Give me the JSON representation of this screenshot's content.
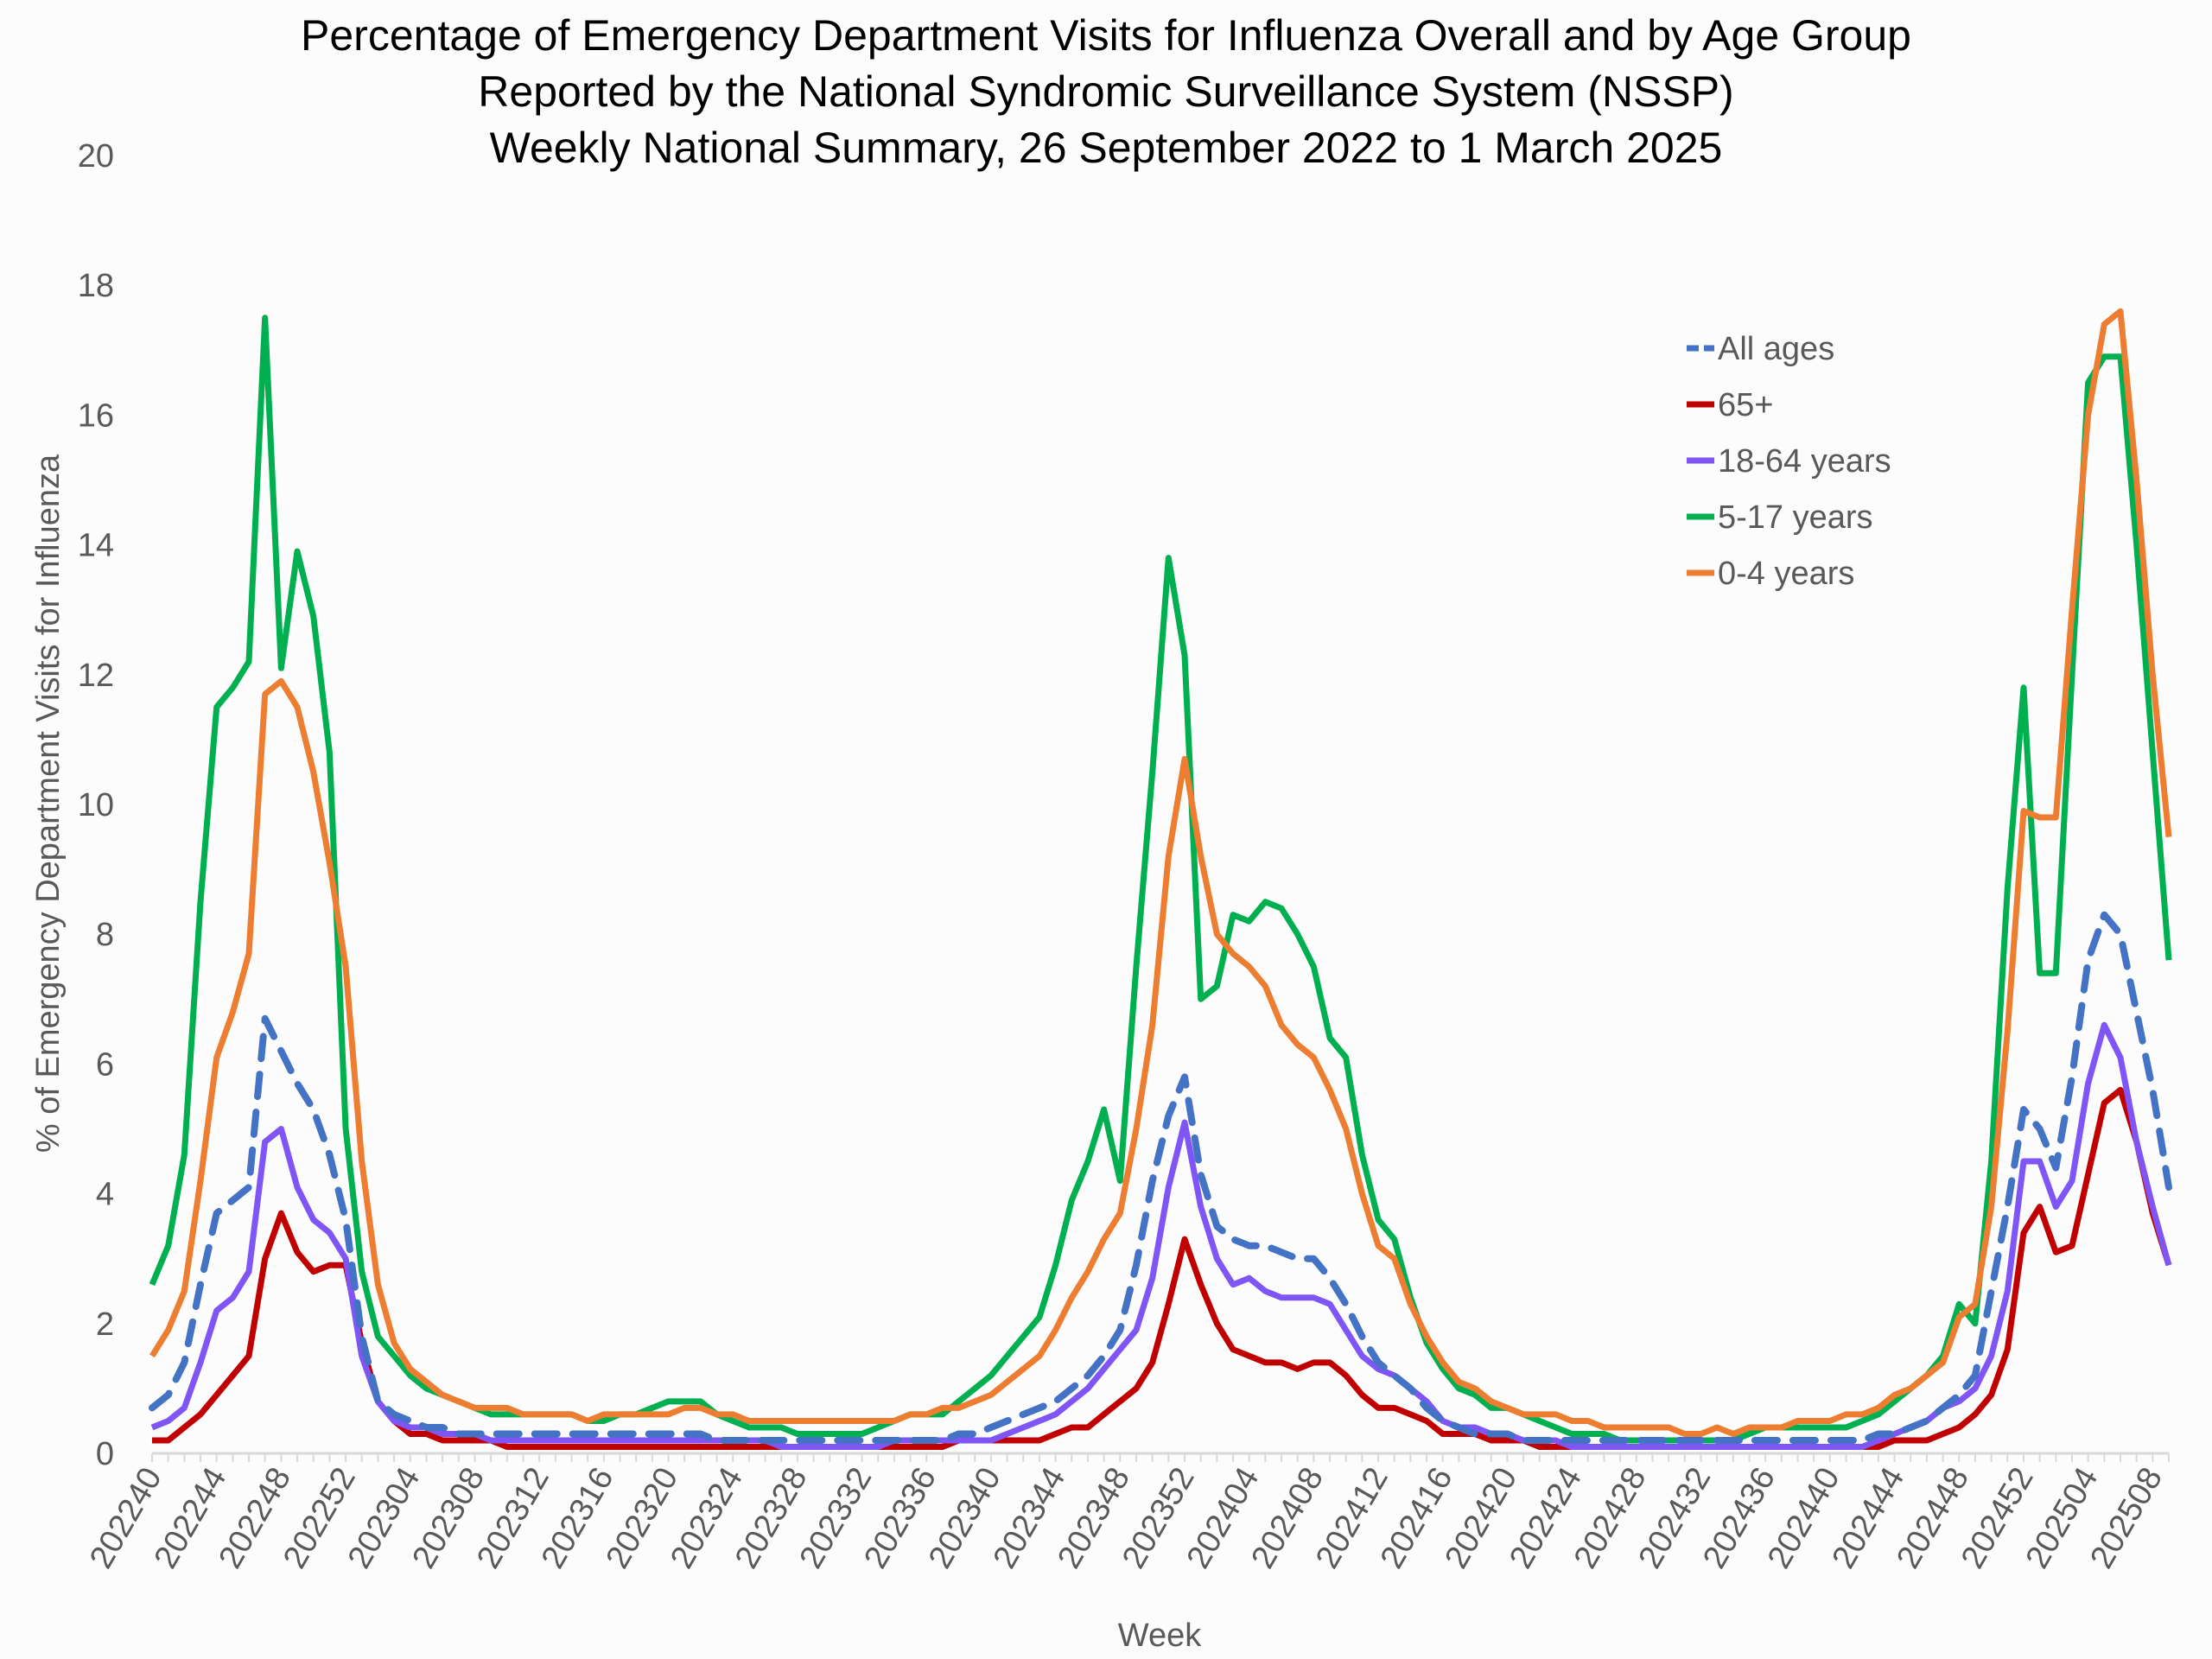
{
  "chart_data": {
    "type": "line",
    "title": [
      "Percentage of Emergency Department Visits for Influenza Overall and by Age Group",
      "Reported by the National Syndromic Surveillance System (NSSP)",
      "Weekly National Summary, 26 September 2022 to 1 March 2025"
    ],
    "xlabel": "Week",
    "ylabel": "% of Emergency Department Visits for Influenza",
    "ylim": [
      0,
      20
    ],
    "yticks": [
      "0",
      "2",
      "4",
      "6",
      "8",
      "10",
      "12",
      "14",
      "16",
      "18",
      "20"
    ],
    "xtick_labels": [
      "202240",
      "202244",
      "202248",
      "202252",
      "202304",
      "202308",
      "202312",
      "202316",
      "202320",
      "202324",
      "202328",
      "202332",
      "202336",
      "202340",
      "202344",
      "202348",
      "202352",
      "202404",
      "202408",
      "202412",
      "202416",
      "202420",
      "202424",
      "202428",
      "202432",
      "202436",
      "202440",
      "202444",
      "202448",
      "202452",
      "202504",
      "202508"
    ],
    "x_start": "202240",
    "x_end": "202509",
    "grid": false,
    "legend_position": "top-right",
    "series": [
      {
        "name": "All ages",
        "color": "#4472C4",
        "dash": true,
        "values": [
          0.7,
          0.9,
          1.4,
          2.6,
          3.7,
          3.9,
          4.1,
          6.7,
          6.2,
          5.7,
          5.3,
          4.6,
          3.6,
          1.8,
          0.8,
          0.6,
          0.5,
          0.4,
          0.4,
          0.3,
          0.3,
          0.3,
          0.3,
          0.3,
          0.3,
          0.3,
          0.3,
          0.3,
          0.3,
          0.3,
          0.3,
          0.3,
          0.3,
          0.3,
          0.3,
          0.2,
          0.2,
          0.2,
          0.2,
          0.2,
          0.2,
          0.2,
          0.2,
          0.2,
          0.2,
          0.2,
          0.2,
          0.2,
          0.2,
          0.2,
          0.3,
          0.3,
          0.4,
          0.5,
          0.6,
          0.7,
          0.8,
          1.0,
          1.2,
          1.5,
          1.9,
          2.9,
          4.2,
          5.2,
          5.8,
          4.3,
          3.5,
          3.3,
          3.2,
          3.2,
          3.1,
          3.0,
          3.0,
          2.7,
          2.3,
          1.8,
          1.4,
          1.2,
          1.0,
          0.7,
          0.5,
          0.4,
          0.3,
          0.3,
          0.3,
          0.2,
          0.2,
          0.2,
          0.2,
          0.2,
          0.2,
          0.2,
          0.2,
          0.2,
          0.2,
          0.2,
          0.2,
          0.2,
          0.2,
          0.2,
          0.2,
          0.2,
          0.2,
          0.2,
          0.2,
          0.2,
          0.2,
          0.3,
          0.3,
          0.4,
          0.5,
          0.7,
          0.9,
          1.2,
          2.5,
          3.8,
          5.3,
          5.0,
          4.4,
          5.8,
          7.6,
          8.3,
          8.0,
          6.8,
          5.6,
          4.1
        ]
      },
      {
        "name": "65+",
        "color": "#C00000",
        "dash": false,
        "values": [
          0.2,
          0.2,
          0.4,
          0.6,
          0.9,
          1.2,
          1.5,
          3.0,
          3.7,
          3.1,
          2.8,
          2.9,
          2.9,
          1.7,
          0.8,
          0.5,
          0.3,
          0.3,
          0.2,
          0.2,
          0.2,
          0.2,
          0.1,
          0.1,
          0.1,
          0.1,
          0.1,
          0.1,
          0.1,
          0.1,
          0.1,
          0.1,
          0.1,
          0.1,
          0.1,
          0.1,
          0.1,
          0.1,
          0.1,
          0.1,
          0.1,
          0.1,
          0.1,
          0.1,
          0.1,
          0.1,
          0.1,
          0.1,
          0.1,
          0.1,
          0.2,
          0.2,
          0.2,
          0.2,
          0.2,
          0.2,
          0.3,
          0.4,
          0.4,
          0.6,
          0.8,
          1.0,
          1.4,
          2.3,
          3.3,
          2.6,
          2.0,
          1.6,
          1.5,
          1.4,
          1.4,
          1.3,
          1.4,
          1.4,
          1.2,
          0.9,
          0.7,
          0.7,
          0.6,
          0.5,
          0.3,
          0.3,
          0.3,
          0.2,
          0.2,
          0.2,
          0.1,
          0.1,
          0.1,
          0.1,
          0.1,
          0.1,
          0.1,
          0.1,
          0.1,
          0.1,
          0.1,
          0.1,
          0.1,
          0.1,
          0.1,
          0.1,
          0.1,
          0.1,
          0.1,
          0.1,
          0.1,
          0.1,
          0.2,
          0.2,
          0.2,
          0.3,
          0.4,
          0.6,
          0.9,
          1.6,
          3.4,
          3.8,
          3.1,
          3.2,
          4.3,
          5.4,
          5.6,
          4.8,
          3.7,
          2.9
        ]
      },
      {
        "name": "18-64 years",
        "color": "#7F56F5",
        "dash": false,
        "values": [
          0.4,
          0.5,
          0.7,
          1.4,
          2.2,
          2.4,
          2.8,
          4.8,
          5.0,
          4.1,
          3.6,
          3.4,
          3.0,
          1.5,
          0.8,
          0.5,
          0.4,
          0.4,
          0.3,
          0.3,
          0.3,
          0.2,
          0.2,
          0.2,
          0.2,
          0.2,
          0.2,
          0.2,
          0.2,
          0.2,
          0.2,
          0.2,
          0.2,
          0.2,
          0.2,
          0.2,
          0.2,
          0.2,
          0.2,
          0.1,
          0.1,
          0.1,
          0.1,
          0.1,
          0.1,
          0.1,
          0.2,
          0.2,
          0.2,
          0.2,
          0.2,
          0.2,
          0.2,
          0.3,
          0.4,
          0.5,
          0.6,
          0.8,
          1.0,
          1.3,
          1.6,
          1.9,
          2.7,
          4.1,
          5.1,
          3.8,
          3.0,
          2.6,
          2.7,
          2.5,
          2.4,
          2.4,
          2.4,
          2.3,
          1.9,
          1.5,
          1.3,
          1.2,
          1.0,
          0.8,
          0.5,
          0.4,
          0.4,
          0.3,
          0.3,
          0.2,
          0.2,
          0.2,
          0.1,
          0.1,
          0.1,
          0.1,
          0.1,
          0.1,
          0.1,
          0.1,
          0.1,
          0.1,
          0.1,
          0.1,
          0.1,
          0.1,
          0.1,
          0.1,
          0.1,
          0.1,
          0.1,
          0.2,
          0.3,
          0.4,
          0.5,
          0.7,
          0.8,
          1.0,
          1.5,
          2.5,
          4.5,
          4.5,
          3.8,
          4.2,
          5.7,
          6.6,
          6.1,
          4.8,
          3.8,
          2.9
        ]
      },
      {
        "name": "5-17 years",
        "color": "#00B050",
        "dash": false,
        "values": [
          2.6,
          3.2,
          4.6,
          8.5,
          11.5,
          11.8,
          12.2,
          17.5,
          12.1,
          13.9,
          12.9,
          10.8,
          5.0,
          2.8,
          1.8,
          1.5,
          1.2,
          1.0,
          0.9,
          0.8,
          0.7,
          0.6,
          0.6,
          0.6,
          0.6,
          0.6,
          0.6,
          0.5,
          0.5,
          0.6,
          0.6,
          0.7,
          0.8,
          0.8,
          0.8,
          0.6,
          0.5,
          0.4,
          0.4,
          0.4,
          0.3,
          0.3,
          0.3,
          0.3,
          0.3,
          0.4,
          0.5,
          0.6,
          0.6,
          0.6,
          0.8,
          1.0,
          1.2,
          1.5,
          1.8,
          2.1,
          2.9,
          3.9,
          4.5,
          5.3,
          4.2,
          7.5,
          10.5,
          13.8,
          12.3,
          7.0,
          7.2,
          8.3,
          8.2,
          8.5,
          8.4,
          8.0,
          7.5,
          6.4,
          6.1,
          4.6,
          3.6,
          3.3,
          2.4,
          1.7,
          1.3,
          1.0,
          0.9,
          0.7,
          0.7,
          0.6,
          0.5,
          0.4,
          0.3,
          0.3,
          0.3,
          0.2,
          0.2,
          0.2,
          0.2,
          0.2,
          0.2,
          0.2,
          0.2,
          0.3,
          0.4,
          0.4,
          0.4,
          0.4,
          0.4,
          0.4,
          0.5,
          0.6,
          0.8,
          1.0,
          1.2,
          1.5,
          2.3,
          2.0,
          4.5,
          8.7,
          11.8,
          7.4,
          7.4,
          12.0,
          16.5,
          16.9,
          16.9,
          14.0,
          10.8,
          7.6
        ]
      },
      {
        "name": "0-4 years",
        "color": "#ED7D31",
        "dash": false,
        "values": [
          1.5,
          1.9,
          2.5,
          4.2,
          6.1,
          6.8,
          7.7,
          11.7,
          11.9,
          11.5,
          10.5,
          9.1,
          7.5,
          4.5,
          2.6,
          1.7,
          1.3,
          1.1,
          0.9,
          0.8,
          0.7,
          0.7,
          0.7,
          0.6,
          0.6,
          0.6,
          0.6,
          0.5,
          0.6,
          0.6,
          0.6,
          0.6,
          0.6,
          0.7,
          0.7,
          0.6,
          0.6,
          0.5,
          0.5,
          0.5,
          0.5,
          0.5,
          0.5,
          0.5,
          0.5,
          0.5,
          0.5,
          0.6,
          0.6,
          0.7,
          0.7,
          0.8,
          0.9,
          1.1,
          1.3,
          1.5,
          1.9,
          2.4,
          2.8,
          3.3,
          3.7,
          5.0,
          6.6,
          9.2,
          10.7,
          9.2,
          8.0,
          7.7,
          7.5,
          7.2,
          6.6,
          6.3,
          6.1,
          5.6,
          5.0,
          4.0,
          3.2,
          3.0,
          2.3,
          1.8,
          1.4,
          1.1,
          1.0,
          0.8,
          0.7,
          0.6,
          0.6,
          0.6,
          0.5,
          0.5,
          0.4,
          0.4,
          0.4,
          0.4,
          0.4,
          0.3,
          0.3,
          0.4,
          0.3,
          0.4,
          0.4,
          0.4,
          0.5,
          0.5,
          0.5,
          0.6,
          0.6,
          0.7,
          0.9,
          1.0,
          1.2,
          1.4,
          2.1,
          2.3,
          3.8,
          6.5,
          9.9,
          9.8,
          9.8,
          13.0,
          16.0,
          17.4,
          17.6,
          15.0,
          12.0,
          9.5
        ]
      }
    ]
  }
}
